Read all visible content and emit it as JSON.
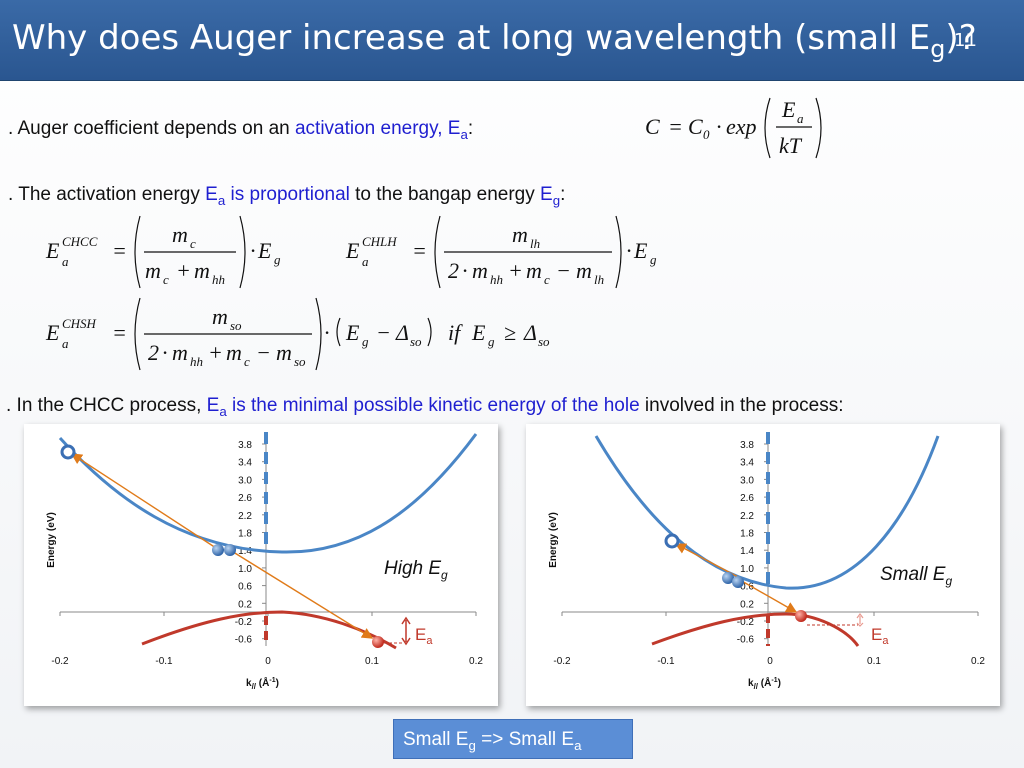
{
  "slide": {
    "title_main": "Why does Auger increase at long wavelength (small E",
    "title_sub": "g",
    "title_end": ")?",
    "number": "11"
  },
  "bullets": {
    "b1": {
      "prefix": ". Auger coefficient depends on an ",
      "highlight": "activation energy, E",
      "highlight_sub": "a",
      "suffix": ":"
    },
    "b2": {
      "prefix": ". The activation energy ",
      "ea": "E",
      "ea_sub": "a",
      "highlight": " is proportional",
      "mid": " to the bangap energy ",
      "eg": "E",
      "eg_sub": "g",
      "suffix": ":"
    },
    "b3": {
      "prefix": ". In the CHCC process, ",
      "ea": "E",
      "ea_sub": "a",
      "highlight": " is the minimal possible kinetic energy of the hole",
      "suffix": " involved in the process:"
    }
  },
  "equations": {
    "auger": {
      "lhs": "C",
      "c0": "C",
      "c0_sub": "0",
      "exp": "exp",
      "num": "E",
      "num_sub": "a",
      "den": "kT"
    },
    "chcc": {
      "sup": "CHCC",
      "num": "m",
      "num_sub": "c",
      "den_a": "m",
      "den_a_sub": "c",
      "den_b": "m",
      "den_b_sub": "hh",
      "e": "E",
      "e_sub": "g"
    },
    "chlh": {
      "sup": "CHLH",
      "num": "m",
      "num_sub": "lh",
      "two": "2",
      "den_a": "m",
      "den_a_sub": "hh",
      "den_b": "m",
      "den_b_sub": "c",
      "den_c": "m",
      "den_c_sub": "lh",
      "e": "E",
      "e_sub": "g"
    },
    "chsh": {
      "sup": "CHSH",
      "num": "m",
      "num_sub": "so",
      "two": "2",
      "den_a": "m",
      "den_a_sub": "hh",
      "den_b": "m",
      "den_b_sub": "c",
      "den_c": "m",
      "den_c_sub": "so",
      "e": "E",
      "e_sub": "g",
      "delta": "Δ",
      "delta_sub": "so",
      "cond": "if",
      "cond_e": "E",
      "cond_e_sub": "g",
      "cond_delta": "Δ",
      "cond_delta_sub": "so"
    }
  },
  "charts": {
    "y_ticks": [
      "3.8",
      "3.4",
      "3.0",
      "2.6",
      "2.2",
      "1.8",
      "1.4",
      "1.0",
      "0.6",
      "0.2",
      "-0.2",
      "-0.6"
    ],
    "x_ticks": [
      "-0.2",
      "-0.1",
      "0",
      "0.1",
      "0.2"
    ],
    "ylabel": "Energy (eV)",
    "xlabel": "k",
    "xlabel_sub": "//",
    "xlabel_unit": " (Å",
    "xlabel_sup": "-1",
    "xlabel_close": ")",
    "left_label": "High E",
    "left_label_sub": "g",
    "right_label": "Small E",
    "right_label_sub": "g",
    "ea_label": "E",
    "ea_label_sub": "a"
  },
  "colors": {
    "conduction_band": "#4a86c6",
    "valence_band": "#c0392b",
    "transition_arrow": "#e07b1a",
    "title_bar": "#2f5f9e",
    "highlight_text": "#1f1fd0",
    "conclusion_box": "#5b8ed6"
  },
  "conclusion": {
    "a": "Small E",
    "a_sub": "g",
    "mid": " => Small E",
    "b_sub": "a"
  }
}
